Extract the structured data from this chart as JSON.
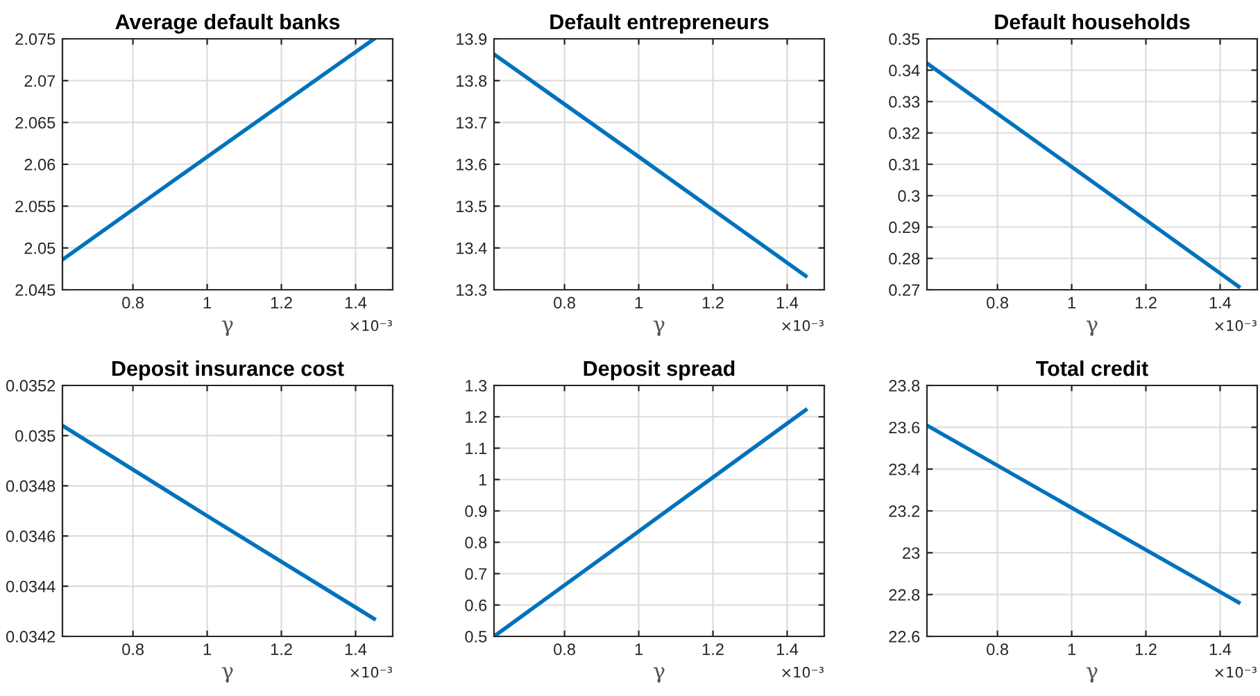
{
  "chart_data": [
    {
      "type": "line",
      "title": "Average default banks",
      "xlabel": "γ",
      "x": [
        0.61,
        1,
        1.45
      ],
      "series": [
        {
          "color": "#0072bd",
          "values": [
            2.0486,
            2.0609,
            2.075
          ]
        }
      ],
      "xlim": [
        0.61,
        1.5
      ],
      "xticks": [
        0.8,
        1,
        1.2,
        1.4
      ],
      "ylim": [
        2.045,
        2.075
      ],
      "yticks": [
        2.045,
        2.05,
        2.055,
        2.06,
        2.065,
        2.07,
        2.075
      ],
      "grid": true,
      "annotations": [
        "×10⁻³"
      ]
    },
    {
      "type": "line",
      "title": "Default entrepreneurs",
      "xlabel": "γ",
      "x": [
        0.61,
        1,
        1.45
      ],
      "series": [
        {
          "color": "#0072bd",
          "values": [
            13.863,
            13.618,
            13.333
          ]
        }
      ],
      "xlim": [
        0.61,
        1.5
      ],
      "xticks": [
        0.8,
        1,
        1.2,
        1.4
      ],
      "ylim": [
        13.3,
        13.9
      ],
      "yticks": [
        13.3,
        13.4,
        13.5,
        13.6,
        13.7,
        13.8,
        13.9
      ],
      "grid": true,
      "annotations": [
        "×10⁻³"
      ]
    },
    {
      "type": "line",
      "title": "Default households",
      "xlabel": "γ",
      "x": [
        0.61,
        1,
        1.45
      ],
      "series": [
        {
          "color": "#0072bd",
          "values": [
            0.3422,
            0.3092,
            0.271
          ]
        }
      ],
      "xlim": [
        0.61,
        1.5
      ],
      "xticks": [
        0.8,
        1,
        1.2,
        1.4
      ],
      "ylim": [
        0.27,
        0.35
      ],
      "yticks": [
        0.27,
        0.28,
        0.29,
        0.3,
        0.31,
        0.32,
        0.33,
        0.34,
        0.35
      ],
      "grid": true,
      "annotations": [
        "×10⁻³"
      ]
    },
    {
      "type": "line",
      "title": "Deposit insurance cost",
      "xlabel": "γ",
      "x": [
        0.61,
        1,
        1.45
      ],
      "series": [
        {
          "color": "#0072bd",
          "values": [
            0.03504,
            0.03468,
            0.03427
          ]
        }
      ],
      "xlim": [
        0.61,
        1.5
      ],
      "xticks": [
        0.8,
        1,
        1.2,
        1.4
      ],
      "ylim": [
        0.0342,
        0.0352
      ],
      "yticks": [
        0.0342,
        0.0344,
        0.0346,
        0.0348,
        0.035,
        0.0352
      ],
      "grid": true,
      "annotations": [
        "×10⁻³"
      ]
    },
    {
      "type": "line",
      "title": "Deposit spread",
      "xlabel": "γ",
      "x": [
        0.61,
        1,
        1.45
      ],
      "series": [
        {
          "color": "#0072bd",
          "values": [
            0.5,
            0.835,
            1.222
          ]
        }
      ],
      "xlim": [
        0.61,
        1.5
      ],
      "xticks": [
        0.8,
        1,
        1.2,
        1.4
      ],
      "ylim": [
        0.5,
        1.3
      ],
      "yticks": [
        0.5,
        0.6,
        0.7,
        0.8,
        0.9,
        1,
        1.1,
        1.2,
        1.3
      ],
      "grid": true,
      "annotations": [
        "×10⁻³"
      ]
    },
    {
      "type": "line",
      "title": "Total credit",
      "xlabel": "γ",
      "x": [
        0.61,
        1,
        1.45
      ],
      "series": [
        {
          "color": "#0072bd",
          "values": [
            23.609,
            23.215,
            22.762
          ]
        }
      ],
      "xlim": [
        0.61,
        1.5
      ],
      "xticks": [
        0.8,
        1,
        1.2,
        1.4
      ],
      "ylim": [
        22.6,
        23.8
      ],
      "yticks": [
        22.6,
        22.8,
        23,
        23.2,
        23.4,
        23.6,
        23.8
      ],
      "grid": true,
      "annotations": [
        "×10⁻³"
      ]
    }
  ]
}
